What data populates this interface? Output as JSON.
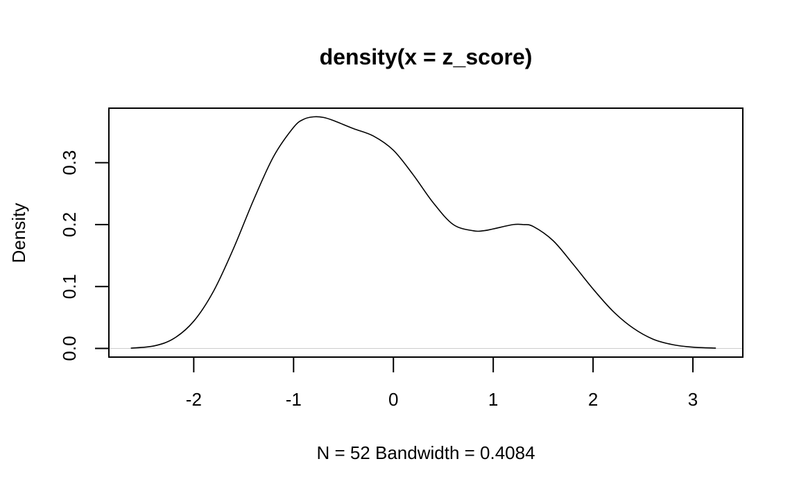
{
  "chart_data": {
    "type": "line",
    "title": "density(x = z_score)",
    "xlabel": "N = 52   Bandwidth = 0.4084",
    "ylabel": "Density",
    "xlim": [
      -2.85,
      3.5
    ],
    "ylim": [
      -0.014,
      0.388
    ],
    "x_ticks": [
      -2,
      -1,
      0,
      1,
      2,
      3
    ],
    "x_tick_labels": [
      "-2",
      "-1",
      "0",
      "1",
      "2",
      "3"
    ],
    "y_ticks": [
      0.0,
      0.1,
      0.2,
      0.3
    ],
    "y_tick_labels": [
      "0.0",
      "0.1",
      "0.2",
      "0.3"
    ],
    "grid": false,
    "baseline": {
      "y": 0,
      "color": "#cccccc"
    },
    "series": [
      {
        "color": "#000000",
        "x": [
          -2.63,
          -2.4,
          -2.2,
          -2.0,
          -1.8,
          -1.6,
          -1.4,
          -1.2,
          -1.0,
          -0.9,
          -0.8,
          -0.7,
          -0.6,
          -0.4,
          -0.2,
          0.0,
          0.2,
          0.4,
          0.6,
          0.8,
          0.9,
          1.0,
          1.2,
          1.3,
          1.4,
          1.6,
          1.8,
          2.0,
          2.2,
          2.4,
          2.6,
          2.8,
          3.0,
          3.23
        ],
        "y": [
          0.0005,
          0.004,
          0.016,
          0.044,
          0.093,
          0.162,
          0.24,
          0.31,
          0.357,
          0.37,
          0.374,
          0.373,
          0.368,
          0.355,
          0.343,
          0.32,
          0.28,
          0.235,
          0.2,
          0.19,
          0.19,
          0.193,
          0.2,
          0.2,
          0.197,
          0.174,
          0.136,
          0.096,
          0.06,
          0.033,
          0.015,
          0.006,
          0.002,
          0.0005
        ]
      }
    ]
  }
}
